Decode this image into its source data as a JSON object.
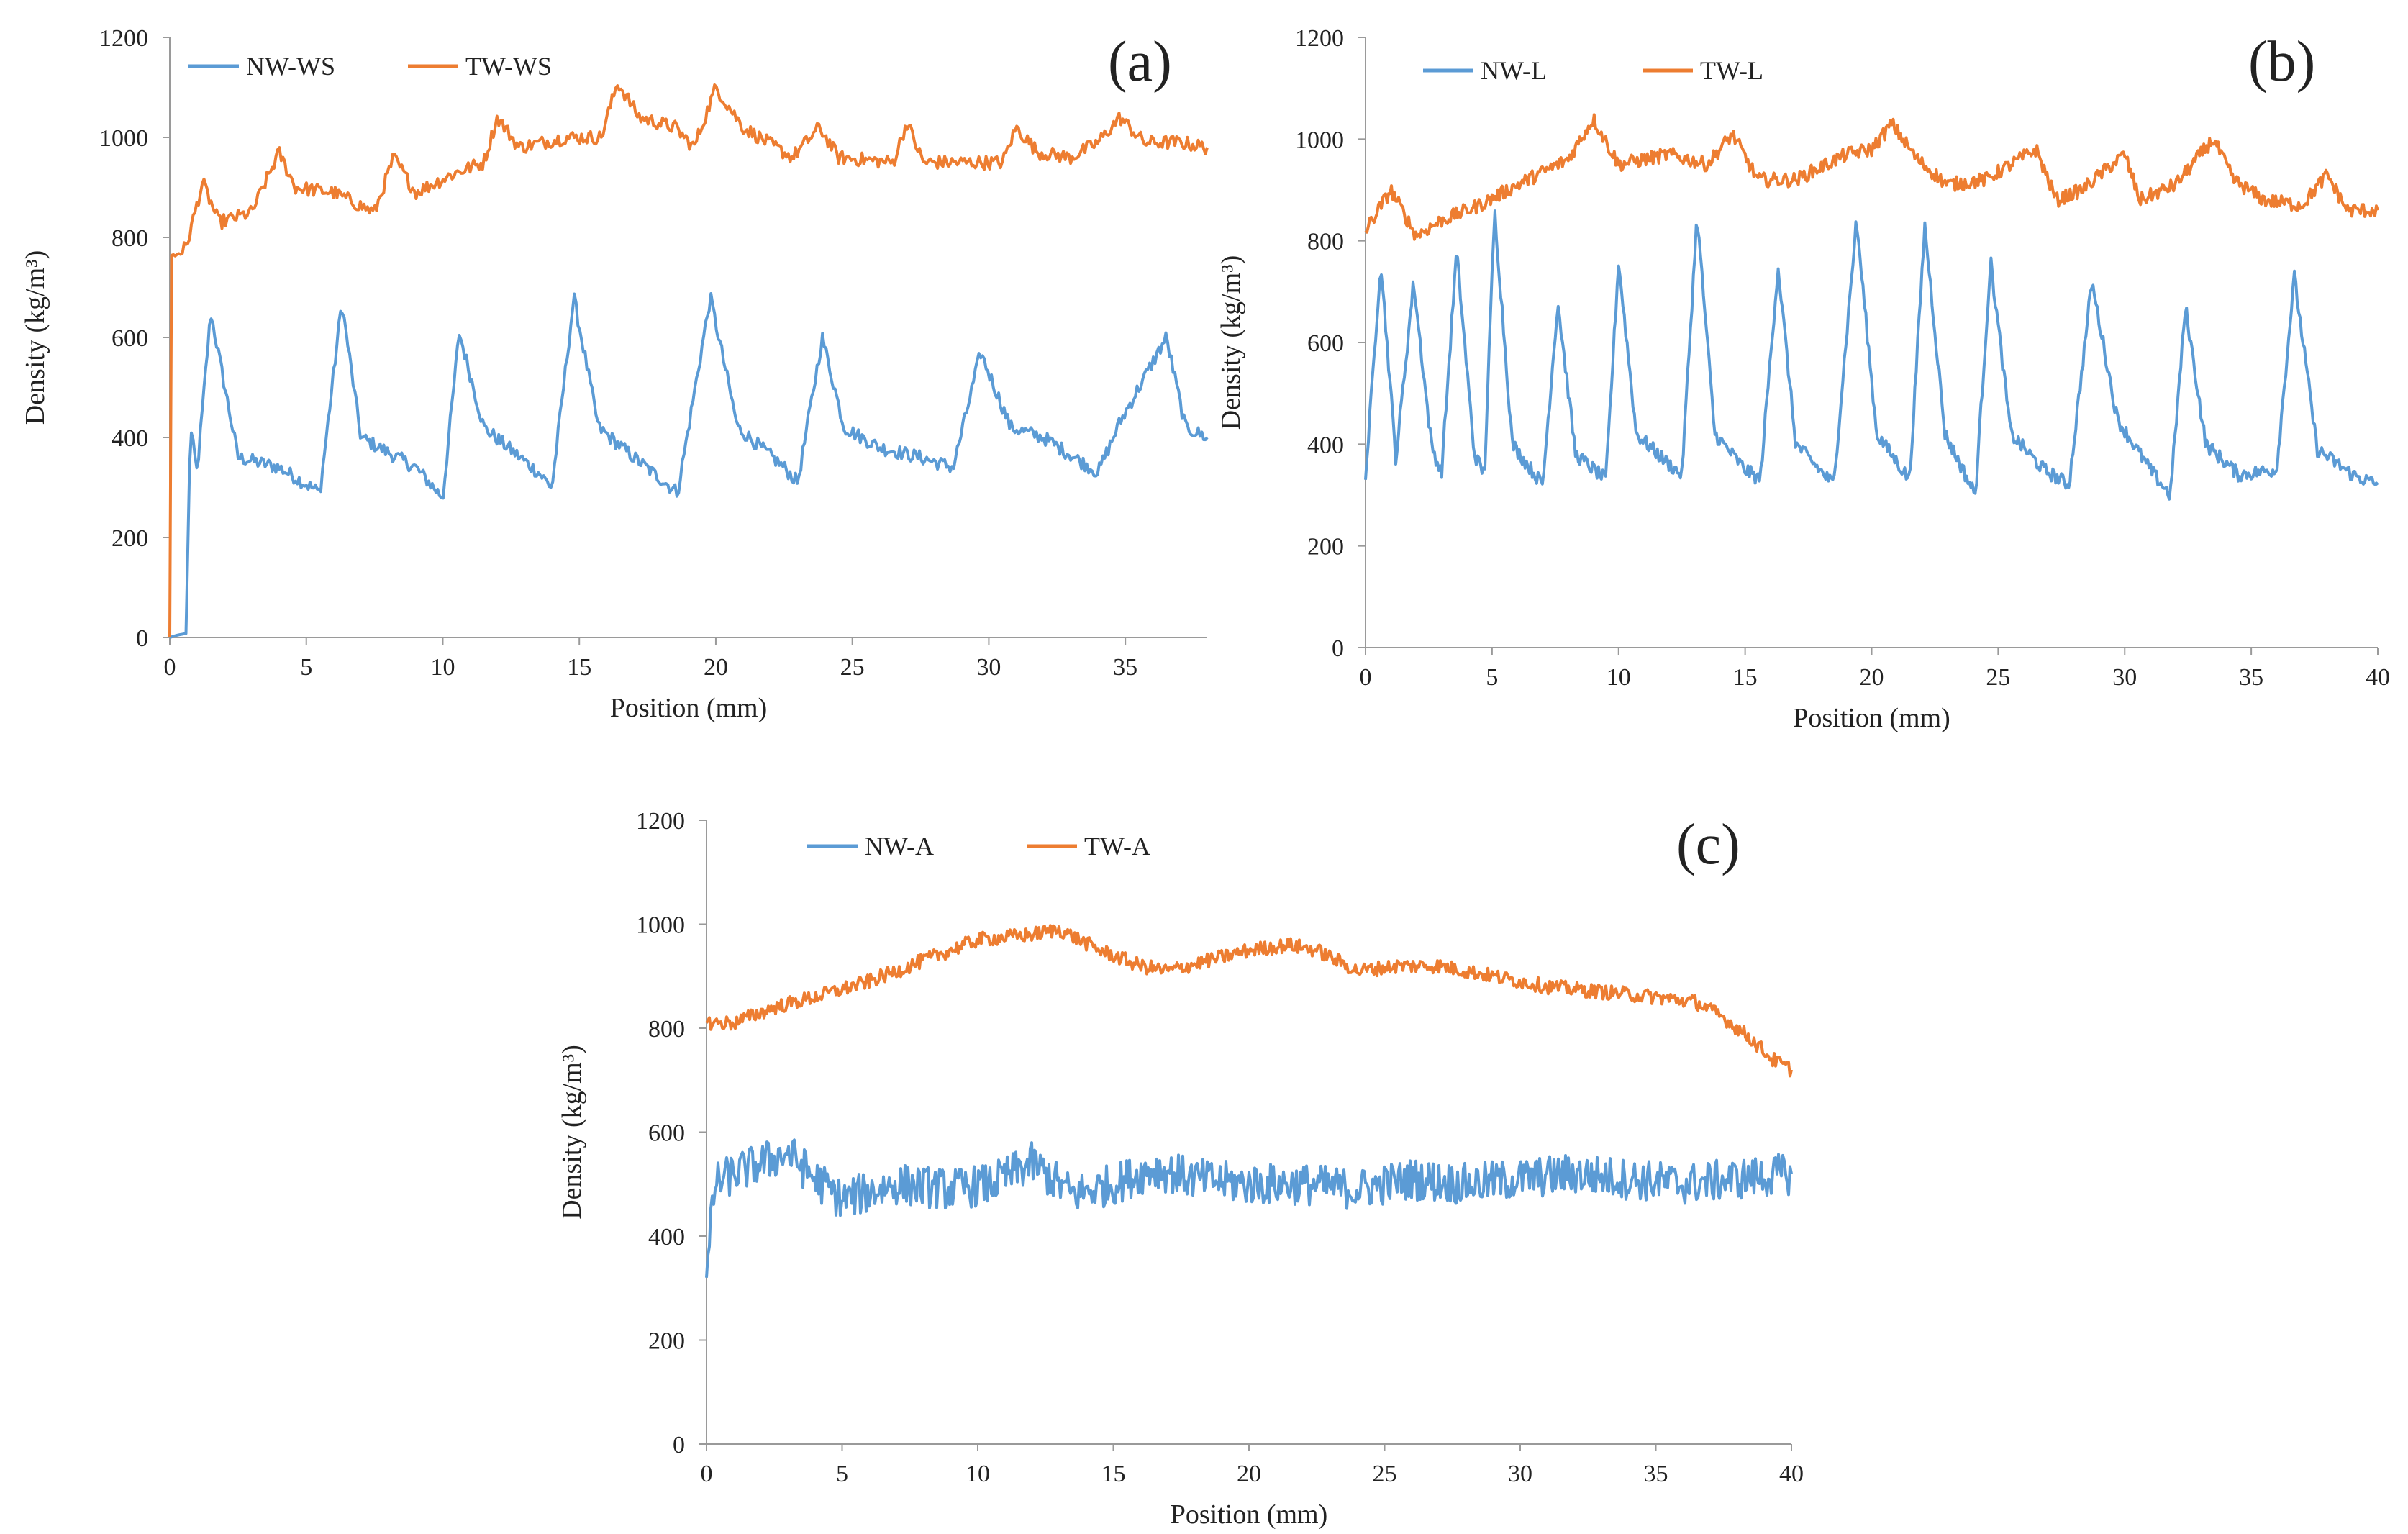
{
  "figure": {
    "colors": {
      "nw": "#5b9bd5",
      "tw": "#ed7d31"
    }
  },
  "chart_data": [
    {
      "type": "line",
      "panel_label": "(a)",
      "xlabel": "Position (mm)",
      "ylabel": "Density (kg/m³)",
      "xlim": [
        0,
        38
      ],
      "ylim": [
        0,
        1200
      ],
      "xticks": [
        0,
        5,
        10,
        15,
        20,
        25,
        30,
        35
      ],
      "yticks": [
        0,
        200,
        400,
        600,
        800,
        1000,
        1200
      ],
      "legend": "top-left",
      "grid": false,
      "series": [
        {
          "name": "NW-WS",
          "color": "#5b9bd5",
          "noise": 14,
          "points": [
            [
              0.0,
              0
            ],
            [
              0.3,
              5
            ],
            [
              0.6,
              8
            ],
            [
              0.75,
              420
            ],
            [
              1.0,
              330
            ],
            [
              1.5,
              650
            ],
            [
              2.5,
              360
            ],
            [
              4.0,
              340
            ],
            [
              5.5,
              290
            ],
            [
              6.3,
              670
            ],
            [
              7.0,
              400
            ],
            [
              9.0,
              340
            ],
            [
              10.0,
              280
            ],
            [
              10.6,
              610
            ],
            [
              11.5,
              420
            ],
            [
              13.5,
              330
            ],
            [
              14.0,
              300
            ],
            [
              14.8,
              680
            ],
            [
              15.7,
              420
            ],
            [
              17.0,
              360
            ],
            [
              18.6,
              290
            ],
            [
              19.8,
              680
            ],
            [
              20.8,
              420
            ],
            [
              22.5,
              340
            ],
            [
              23.0,
              310
            ],
            [
              23.9,
              600
            ],
            [
              24.7,
              420
            ],
            [
              26.0,
              380
            ],
            [
              27.5,
              360
            ],
            [
              28.7,
              340
            ],
            [
              29.7,
              570
            ],
            [
              30.8,
              420
            ],
            [
              32.0,
              400
            ],
            [
              34.0,
              330
            ],
            [
              34.8,
              430
            ],
            [
              36.5,
              600
            ],
            [
              37.2,
              420
            ],
            [
              38.0,
              400
            ]
          ]
        },
        {
          "name": "TW-WS",
          "color": "#ed7d31",
          "noise": 14,
          "points": [
            [
              0.0,
              0
            ],
            [
              0.05,
              760
            ],
            [
              0.6,
              780
            ],
            [
              1.2,
              910
            ],
            [
              1.8,
              830
            ],
            [
              3.0,
              850
            ],
            [
              4.0,
              970
            ],
            [
              4.6,
              900
            ],
            [
              6.0,
              890
            ],
            [
              7.5,
              850
            ],
            [
              8.2,
              960
            ],
            [
              9.0,
              890
            ],
            [
              10.5,
              930
            ],
            [
              11.5,
              950
            ],
            [
              12.0,
              1040
            ],
            [
              12.8,
              980
            ],
            [
              14.5,
              1000
            ],
            [
              15.8,
              1000
            ],
            [
              16.4,
              1110
            ],
            [
              17.2,
              1040
            ],
            [
              18.5,
              1020
            ],
            [
              19.2,
              980
            ],
            [
              20.0,
              1100
            ],
            [
              21.0,
              1020
            ],
            [
              22.8,
              960
            ],
            [
              23.8,
              1020
            ],
            [
              24.5,
              960
            ],
            [
              26.5,
              950
            ],
            [
              27.0,
              1030
            ],
            [
              27.6,
              950
            ],
            [
              29.0,
              950
            ],
            [
              30.5,
              950
            ],
            [
              31.0,
              1020
            ],
            [
              31.8,
              970
            ],
            [
              33.0,
              960
            ],
            [
              34.0,
              990
            ],
            [
              34.8,
              1040
            ],
            [
              35.7,
              990
            ],
            [
              37.0,
              990
            ],
            [
              38.0,
              980
            ]
          ]
        }
      ]
    },
    {
      "type": "line",
      "panel_label": "(b)",
      "xlabel": "Position (mm)",
      "ylabel": "Density (kg/m³)",
      "xlim": [
        0,
        40
      ],
      "ylim": [
        0,
        1200
      ],
      "xticks": [
        0,
        5,
        10,
        15,
        20,
        25,
        30,
        35,
        40
      ],
      "yticks": [
        0,
        200,
        400,
        600,
        800,
        1000,
        1200
      ],
      "legend": "top-left",
      "grid": false,
      "series": [
        {
          "name": "NW-L",
          "color": "#5b9bd5",
          "noise": 14,
          "points": [
            [
              0.0,
              330
            ],
            [
              0.6,
              760
            ],
            [
              1.2,
              370
            ],
            [
              1.9,
              720
            ],
            [
              2.6,
              400
            ],
            [
              3.0,
              340
            ],
            [
              3.6,
              780
            ],
            [
              4.3,
              380
            ],
            [
              4.7,
              340
            ],
            [
              5.1,
              860
            ],
            [
              5.8,
              400
            ],
            [
              7.0,
              320
            ],
            [
              7.6,
              680
            ],
            [
              8.3,
              380
            ],
            [
              9.5,
              330
            ],
            [
              10.0,
              760
            ],
            [
              10.7,
              420
            ],
            [
              12.0,
              360
            ],
            [
              12.5,
              340
            ],
            [
              13.1,
              850
            ],
            [
              13.8,
              420
            ],
            [
              15.0,
              350
            ],
            [
              15.6,
              330
            ],
            [
              16.3,
              750
            ],
            [
              17.0,
              400
            ],
            [
              18.5,
              320
            ],
            [
              19.4,
              840
            ],
            [
              20.2,
              420
            ],
            [
              21.5,
              330
            ],
            [
              22.1,
              830
            ],
            [
              22.9,
              420
            ],
            [
              23.8,
              330
            ],
            [
              24.1,
              300
            ],
            [
              24.7,
              760
            ],
            [
              25.5,
              420
            ],
            [
              26.8,
              350
            ],
            [
              27.8,
              320
            ],
            [
              28.7,
              720
            ],
            [
              29.7,
              450
            ],
            [
              31.0,
              350
            ],
            [
              31.8,
              300
            ],
            [
              32.4,
              670
            ],
            [
              33.2,
              400
            ],
            [
              34.5,
              340
            ],
            [
              36.0,
              350
            ],
            [
              36.7,
              730
            ],
            [
              37.6,
              390
            ],
            [
              39.0,
              340
            ],
            [
              40.0,
              320
            ]
          ]
        },
        {
          "name": "TW-L",
          "color": "#ed7d31",
          "noise": 14,
          "points": [
            [
              0.0,
              820
            ],
            [
              1.0,
              900
            ],
            [
              2.0,
              810
            ],
            [
              3.0,
              840
            ],
            [
              4.5,
              870
            ],
            [
              6.0,
              910
            ],
            [
              8.0,
              960
            ],
            [
              9.0,
              1040
            ],
            [
              10.0,
              950
            ],
            [
              12.0,
              970
            ],
            [
              13.5,
              950
            ],
            [
              14.5,
              1010
            ],
            [
              15.5,
              920
            ],
            [
              17.0,
              920
            ],
            [
              19.0,
              970
            ],
            [
              20.0,
              980
            ],
            [
              20.8,
              1030
            ],
            [
              21.8,
              960
            ],
            [
              23.0,
              910
            ],
            [
              24.5,
              920
            ],
            [
              25.5,
              950
            ],
            [
              26.5,
              980
            ],
            [
              27.3,
              880
            ],
            [
              28.3,
              900
            ],
            [
              29.5,
              950
            ],
            [
              30.0,
              970
            ],
            [
              30.6,
              880
            ],
            [
              32.0,
              910
            ],
            [
              33.5,
              1000
            ],
            [
              34.3,
              920
            ],
            [
              35.5,
              880
            ],
            [
              37.0,
              870
            ],
            [
              38.0,
              930
            ],
            [
              38.8,
              860
            ],
            [
              40.0,
              860
            ]
          ]
        }
      ]
    },
    {
      "type": "line",
      "panel_label": "(c)",
      "xlabel": "Position (mm)",
      "ylabel": "Density (kg/m³)",
      "xlim": [
        0,
        40
      ],
      "ylim": [
        0,
        1200
      ],
      "xticks": [
        0,
        5,
        10,
        15,
        20,
        25,
        30,
        35,
        40
      ],
      "yticks": [
        0,
        200,
        400,
        600,
        800,
        1000,
        1200
      ],
      "legend": "top-left",
      "grid": false,
      "series": [
        {
          "name": "NW-A",
          "color": "#5b9bd5",
          "noise": 40,
          "points": [
            [
              0.0,
              320
            ],
            [
              0.3,
              500
            ],
            [
              1.0,
              520
            ],
            [
              2.0,
              540
            ],
            [
              3.0,
              560
            ],
            [
              4.0,
              510
            ],
            [
              5.0,
              470
            ],
            [
              7.0,
              500
            ],
            [
              9.0,
              490
            ],
            [
              10.5,
              500
            ],
            [
              12.0,
              540
            ],
            [
              13.5,
              480
            ],
            [
              15.0,
              500
            ],
            [
              16.5,
              530
            ],
            [
              18.0,
              510
            ],
            [
              20.0,
              500
            ],
            [
              22.0,
              500
            ],
            [
              24.0,
              490
            ],
            [
              26.0,
              510
            ],
            [
              28.0,
              500
            ],
            [
              30.0,
              510
            ],
            [
              32.0,
              520
            ],
            [
              34.0,
              510
            ],
            [
              36.0,
              500
            ],
            [
              38.0,
              510
            ],
            [
              40.0,
              520
            ]
          ]
        },
        {
          "name": "TW-A",
          "color": "#ed7d31",
          "noise": 14,
          "points": [
            [
              0.0,
              810
            ],
            [
              1.0,
              810
            ],
            [
              2.5,
              840
            ],
            [
              4.0,
              860
            ],
            [
              6.0,
              890
            ],
            [
              8.0,
              930
            ],
            [
              10.0,
              970
            ],
            [
              12.0,
              980
            ],
            [
              13.0,
              990
            ],
            [
              14.5,
              950
            ],
            [
              16.0,
              920
            ],
            [
              17.0,
              910
            ],
            [
              18.5,
              930
            ],
            [
              20.0,
              950
            ],
            [
              21.5,
              960
            ],
            [
              22.5,
              950
            ],
            [
              24.0,
              910
            ],
            [
              25.5,
              920
            ],
            [
              27.0,
              920
            ],
            [
              29.0,
              900
            ],
            [
              31.0,
              880
            ],
            [
              33.0,
              870
            ],
            [
              35.0,
              860
            ],
            [
              36.5,
              850
            ],
            [
              37.5,
              820
            ],
            [
              38.5,
              780
            ],
            [
              39.3,
              740
            ],
            [
              40.0,
              720
            ]
          ]
        }
      ]
    }
  ]
}
